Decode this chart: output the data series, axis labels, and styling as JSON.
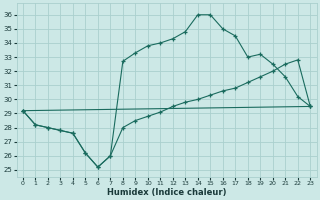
{
  "xlabel": "Humidex (Indice chaleur)",
  "bg_color": "#cce8e6",
  "grid_color": "#aad0ce",
  "line_color": "#1a6b5e",
  "xlim": [
    -0.5,
    23.5
  ],
  "ylim": [
    24.5,
    36.8
  ],
  "xticks": [
    0,
    1,
    2,
    3,
    4,
    5,
    6,
    7,
    8,
    9,
    10,
    11,
    12,
    13,
    14,
    15,
    16,
    17,
    18,
    19,
    20,
    21,
    22,
    23
  ],
  "yticks": [
    25,
    26,
    27,
    28,
    29,
    30,
    31,
    32,
    33,
    34,
    35,
    36
  ],
  "line1_x": [
    0,
    1,
    2,
    3,
    4,
    5,
    6,
    7,
    8,
    9,
    10,
    11,
    12,
    13,
    14,
    15,
    16,
    17,
    18,
    19,
    20,
    21,
    22,
    23
  ],
  "line1_y": [
    29.2,
    28.2,
    28.0,
    27.8,
    27.6,
    26.2,
    25.2,
    26.0,
    32.7,
    33.3,
    33.8,
    34.0,
    34.3,
    34.8,
    36.0,
    36.0,
    35.0,
    34.5,
    33.0,
    33.2,
    32.5,
    31.6,
    30.2,
    29.5
  ],
  "line2_x": [
    0,
    23
  ],
  "line2_y": [
    29.2,
    29.5
  ],
  "line3_x": [
    0,
    1,
    2,
    3,
    4,
    5,
    6,
    7,
    8,
    9,
    10,
    11,
    12,
    13,
    14,
    15,
    16,
    17,
    18,
    19,
    20,
    21,
    22,
    23
  ],
  "line3_y": [
    29.2,
    28.2,
    28.0,
    27.8,
    27.6,
    26.2,
    25.2,
    26.0,
    28.0,
    28.5,
    28.8,
    29.1,
    29.5,
    29.8,
    30.0,
    30.3,
    30.6,
    30.8,
    31.2,
    31.6,
    32.0,
    32.5,
    32.8,
    29.5
  ]
}
